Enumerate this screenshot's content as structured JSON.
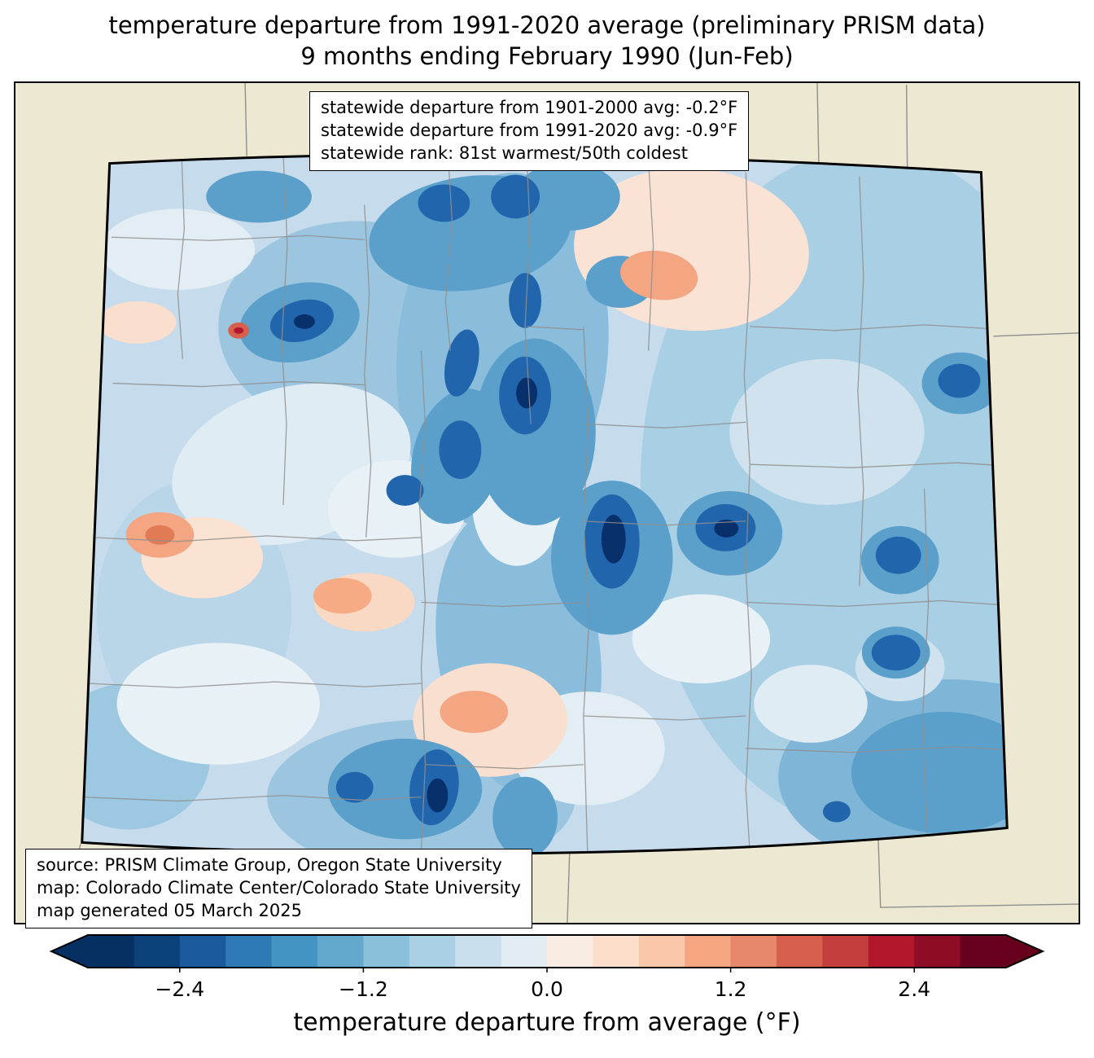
{
  "title": {
    "line1": "temperature departure from 1991-2020 average (preliminary PRISM data)",
    "line2": "9 months ending February 1990 (Jun-Feb)"
  },
  "stats_box": {
    "line1": "statewide departure from 1901-2000 avg: -0.2°F",
    "line2": "statewide departure from 1991-2020 avg: -0.9°F",
    "line3": "statewide rank: 81st warmest/50th coldest"
  },
  "source_box": {
    "line1": "source: PRISM Climate Group, Oregon State University",
    "line2": "map: Colorado Climate Center/Colorado State University",
    "line3": "map generated 05 March 2025"
  },
  "colorbar": {
    "label": "temperature departure from average (°F)",
    "range": [
      -3.0,
      3.0
    ],
    "ticks": [
      {
        "value": -2.4,
        "label": "−2.4"
      },
      {
        "value": -1.2,
        "label": "−1.2"
      },
      {
        "value": 0.0,
        "label": "0.0"
      },
      {
        "value": 1.2,
        "label": "1.2"
      },
      {
        "value": 2.4,
        "label": "2.4"
      }
    ],
    "colors": [
      "#053061",
      "#0b4078",
      "#1b5a9c",
      "#2f79b5",
      "#4393c3",
      "#63a9ce",
      "#8bc0da",
      "#abd0e5",
      "#c9dfed",
      "#e2edf3",
      "#f9ede3",
      "#fbdfcb",
      "#f9c8ab",
      "#f4a582",
      "#e7876c",
      "#d6604d",
      "#c43e3d",
      "#b2182b",
      "#8e0c25",
      "#67001f"
    ],
    "under_color": "#053061",
    "over_color": "#67001f"
  },
  "map": {
    "region": "Colorado",
    "background_color": "#ece8d2",
    "base_fill_color": "#c6dcec",
    "county_line_color": "#8f8f8f",
    "state_border_color": "#000000"
  },
  "chart_data": {
    "type": "heatmap",
    "title": "temperature departure from 1991-2020 average (preliminary PRISM data)",
    "subtitle": "9 months ending February 1990 (Jun-Feb)",
    "region": "Colorado",
    "variable": "temperature departure from average (°F)",
    "colorbar_range": [
      -3.0,
      3.0
    ],
    "colorbar_ticks": [
      -2.4,
      -1.2,
      0.0,
      1.2,
      2.4
    ],
    "statewide_departure_from_1901_2000_avg_F": -0.2,
    "statewide_departure_from_1991_2020_avg_F": -0.9,
    "statewide_rank": "81st warmest/50th coldest",
    "data_source": "PRISM Climate Group, Oregon State University",
    "map_credit": "Colorado Climate Center/Colorado State University",
    "generated": "05 March 2025"
  }
}
